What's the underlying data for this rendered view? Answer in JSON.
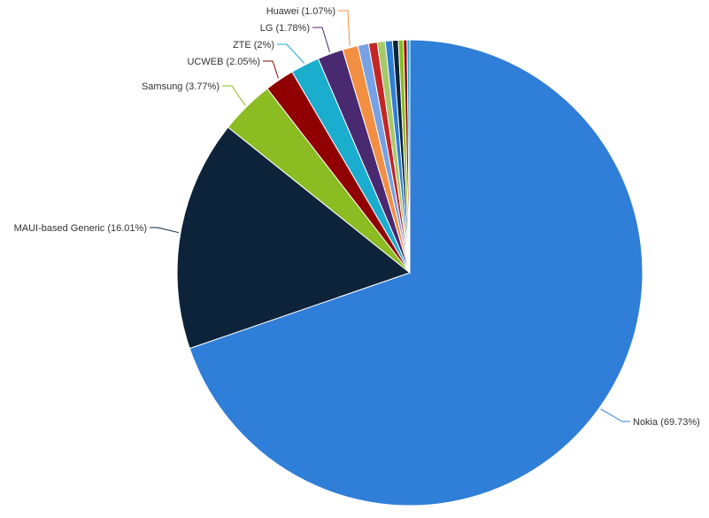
{
  "chart_data": {
    "type": "pie",
    "slices": [
      {
        "label": "Nokia (69.73%)",
        "value": 69.73,
        "color": "#2f7ed8",
        "show_label": true
      },
      {
        "label": "MAUI-based Generic (16.01%)",
        "value": 16.01,
        "color": "#0d233a",
        "show_label": true
      },
      {
        "label": "Samsung (3.77%)",
        "value": 3.77,
        "color": "#8bbc21",
        "show_label": true
      },
      {
        "label": "UCWEB (2.05%)",
        "value": 2.05,
        "color": "#910000",
        "show_label": true
      },
      {
        "label": "ZTE (2%)",
        "value": 2.0,
        "color": "#1aadce",
        "show_label": true
      },
      {
        "label": "LG (1.78%)",
        "value": 1.78,
        "color": "#492970",
        "show_label": true
      },
      {
        "label": "Huawei (1.07%)",
        "value": 1.07,
        "color": "#f28f43",
        "show_label": true
      },
      {
        "value": 0.75,
        "color": "#77a1e5",
        "show_label": false
      },
      {
        "value": 0.6,
        "color": "#c42525",
        "show_label": false
      },
      {
        "value": 0.55,
        "color": "#a6c96a",
        "show_label": false
      },
      {
        "value": 0.5,
        "color": "#2f7ed8",
        "show_label": false
      },
      {
        "value": 0.4,
        "color": "#0d233a",
        "show_label": false
      },
      {
        "value": 0.35,
        "color": "#8bbc21",
        "show_label": false
      },
      {
        "value": 0.25,
        "color": "#910000",
        "show_label": false
      },
      {
        "value": 0.19,
        "color": "#1aadce",
        "show_label": false
      }
    ]
  }
}
